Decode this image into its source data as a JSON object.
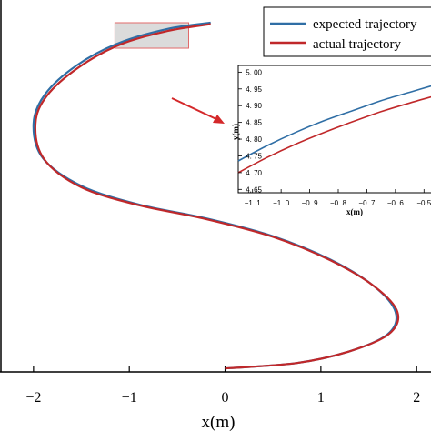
{
  "chart_data": [
    {
      "type": "line",
      "xlabel": "x(m)",
      "xlim": [
        -2.35,
        2.15
      ],
      "ylim": [
        -0.05,
        5.35
      ],
      "x_ticks": [
        -2,
        -1,
        0,
        1,
        2
      ],
      "x_tick_labels": [
        "−2",
        "−1",
        "0",
        "1",
        "2"
      ],
      "legend": {
        "position": "top-right"
      },
      "zoom_box": {
        "x": [
          -1.15,
          -0.38
        ],
        "y": [
          4.65,
          5.02
        ]
      },
      "series": [
        {
          "name": "expected trajectory",
          "color": "#2f6ea5",
          "x": [
            -0.15,
            -0.6,
            -1.1,
            -1.55,
            -1.88,
            -2.0,
            -1.9,
            -1.5,
            -0.9,
            -0.2,
            0.5,
            1.1,
            1.55,
            1.78,
            1.7,
            1.3,
            0.75,
            0.0
          ],
          "y": [
            5.02,
            4.93,
            4.73,
            4.4,
            3.98,
            3.55,
            3.05,
            2.65,
            2.38,
            2.18,
            1.92,
            1.58,
            1.2,
            0.82,
            0.5,
            0.25,
            0.08,
            0.0
          ]
        },
        {
          "name": "actual trajectory",
          "color": "#c0282a",
          "x": [
            -0.15,
            -0.6,
            -1.1,
            -1.53,
            -1.86,
            -1.98,
            -1.89,
            -1.5,
            -0.9,
            -0.2,
            0.5,
            1.1,
            1.56,
            1.8,
            1.71,
            1.3,
            0.75,
            0.0
          ],
          "y": [
            5.0,
            4.9,
            4.7,
            4.37,
            3.96,
            3.55,
            3.04,
            2.63,
            2.37,
            2.17,
            1.91,
            1.57,
            1.19,
            0.82,
            0.5,
            0.25,
            0.08,
            0.0
          ]
        }
      ]
    },
    {
      "type": "line",
      "xlabel": "x(m)",
      "ylabel": "y(m)",
      "xlim": [
        -1.15,
        -0.45
      ],
      "ylim": [
        4.64,
        5.02
      ],
      "x_ticks": [
        -1.1,
        -1.0,
        -0.9,
        -0.8,
        -0.7,
        -0.6,
        -0.5
      ],
      "x_tick_labels": [
        "−1. 1",
        "−1. 0",
        "−0. 9",
        "−0. 8",
        "−0. 7",
        "−0. 6",
        "−0.5"
      ],
      "y_ticks": [
        4.65,
        4.7,
        4.75,
        4.8,
        4.85,
        4.9,
        4.95,
        5.0
      ],
      "y_tick_labels": [
        "4. 65",
        "4. 70",
        "4. 75",
        "4. 80",
        "4. 85",
        "4. 90",
        "4. 95",
        "5. 00"
      ],
      "series": [
        {
          "name": "expected trajectory",
          "color": "#2f6ea5",
          "x": [
            -1.15,
            -1.05,
            -0.95,
            -0.85,
            -0.75,
            -0.65,
            -0.55,
            -0.45
          ],
          "y": [
            4.735,
            4.78,
            4.82,
            4.855,
            4.885,
            4.915,
            4.94,
            4.965
          ]
        },
        {
          "name": "actual trajectory",
          "color": "#c0282a",
          "x": [
            -1.15,
            -1.05,
            -0.95,
            -0.85,
            -0.75,
            -0.65,
            -0.55,
            -0.45
          ],
          "y": [
            4.7,
            4.745,
            4.785,
            4.82,
            4.852,
            4.882,
            4.908,
            4.932
          ]
        }
      ]
    }
  ]
}
